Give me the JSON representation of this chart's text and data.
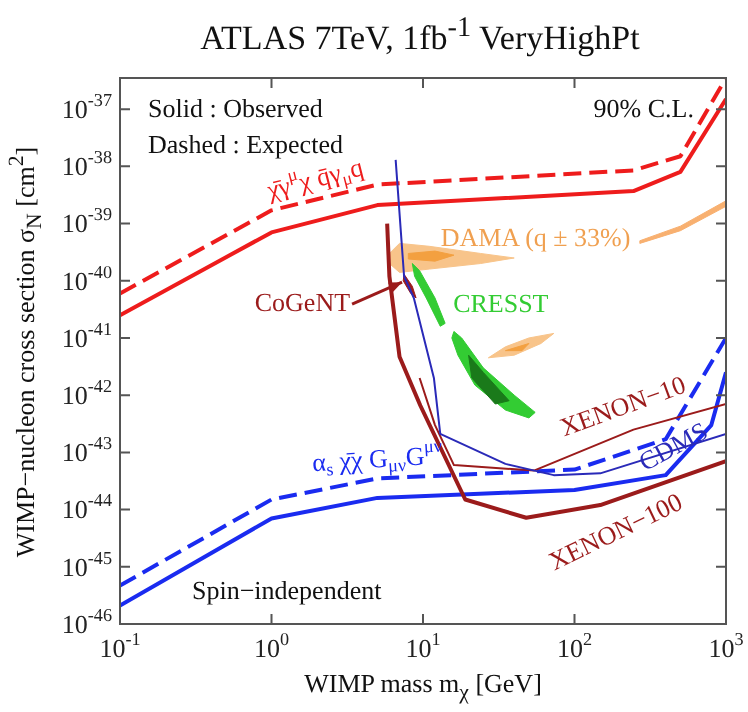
{
  "chart_data": {
    "type": "line",
    "title": "ATLAS 7TeV, 1fb$^{-1}$ VeryHighPt",
    "xlabel": "WIMP mass m$_{χ}$ [GeV]",
    "ylabel": "WIMP−nucleon cross section σ$_{N}$ [cm$^{2}$]",
    "log": "xy",
    "marker": "none",
    "xlim": [
      0.1,
      1000
    ],
    "ylim": [
      1e-46,
      3.5e-37
    ],
    "xticks": [
      {
        "value": 0.1,
        "label": "10$^{-1}$"
      },
      {
        "value": 1,
        "label": "10$^{0}$"
      },
      {
        "value": 10,
        "label": "10$^{1}$"
      },
      {
        "value": 100,
        "label": "10$^{2}$"
      },
      {
        "value": 1000,
        "label": "10$^{3}$"
      }
    ],
    "yticks": [
      {
        "value": 1e-46,
        "label": "10$^{-46}$"
      },
      {
        "value": 1e-45,
        "label": "10$^{-45}$"
      },
      {
        "value": 1e-44,
        "label": "10$^{-44}$"
      },
      {
        "value": 1e-43,
        "label": "10$^{-43}$"
      },
      {
        "value": 1e-42,
        "label": "10$^{-42}$"
      },
      {
        "value": 1e-41,
        "label": "10$^{-41}$"
      },
      {
        "value": 1e-40,
        "label": "10$^{-40}$"
      },
      {
        "value": 1e-39,
        "label": "10$^{-39}$"
      },
      {
        "value": 1e-38,
        "label": "10$^{-38}$"
      },
      {
        "value": 1e-37,
        "label": "10$^{-37}$"
      }
    ],
    "series": [
      {
        "color": "#ee1c1c",
        "line_style": "solid",
        "x": [
          0.1,
          1,
          5,
          245,
          500,
          1000
        ],
        "values": [
          2.5e-41,
          7e-40,
          2.1e-39,
          3.7e-39,
          8e-39,
          1.5e-37
        ]
      },
      {
        "name": "χ̄γ$^{μ}$χ q̄γ$_{μ}$q",
        "color": "#ee1c1c",
        "line_style": "dashed",
        "x": [
          0.1,
          1,
          5,
          245,
          500,
          1000
        ],
        "values": [
          6e-41,
          1.7e-39,
          4.8e-39,
          8.5e-39,
          1.5e-38,
          3.5e-37
        ]
      },
      {
        "color": "#1a2bf0",
        "line_style": "solid",
        "x": [
          0.1,
          1,
          5,
          100,
          400,
          800,
          1000
        ],
        "values": [
          2.1e-46,
          7e-45,
          1.6e-44,
          2.2e-44,
          4e-44,
          3e-43,
          2.5e-42
        ]
      },
      {
        "name": "α$_{s}$ χ̄χ G$_{μν}$G$^{μν}$",
        "color": "#1a2bf0",
        "line_style": "dashed",
        "x": [
          0.1,
          1,
          5,
          100,
          400,
          1000
        ],
        "values": [
          4.7e-46,
          1.5e-44,
          3.5e-44,
          5e-44,
          1.7e-43,
          1e-41
        ]
      },
      {
        "name": "XENON−100",
        "color": "#9b1b1b",
        "line_style": "solid",
        "x": [
          5.8,
          6,
          7,
          9.6,
          19,
          48,
          148,
          1000
        ],
        "values": [
          1e-39,
          1.2e-40,
          4.7e-42,
          6.6e-43,
          1.5e-44,
          7.2e-45,
          1.2e-44,
          7e-44
        ]
      },
      {
        "name": "XENON−10",
        "color": "#9b1b1b",
        "line_style": "solid",
        "x": [
          9.5,
          12,
          16,
          54,
          245,
          1000
        ],
        "values": [
          2e-42,
          3e-43,
          6e-44,
          4.8e-44,
          2.5e-43,
          7e-43
        ]
      },
      {
        "name": "CDMS",
        "color": "#2a2ab8",
        "line_style": "solid",
        "x": [
          6.6,
          7.5,
          8.7,
          11.8,
          13,
          35,
          73,
          148,
          1000
        ],
        "values": [
          1.3e-38,
          1.2e-40,
          5e-41,
          2e-42,
          2.1e-43,
          6.3e-44,
          4e-44,
          4.3e-44,
          2.1e-43
        ]
      },
      {
        "type": "area",
        "name": "CoGeNT",
        "color": "#9b1b1b",
        "x": [
          7.5,
          8.5,
          9,
          8.3,
          7.4,
          7.5
        ],
        "values": [
          1.3e-40,
          8e-41,
          5e-41,
          6e-41,
          1e-40,
          1.3e-40
        ]
      },
      {
        "type": "area",
        "color": "#f8c48a",
        "x": [
          6,
          7,
          11,
          24,
          40,
          24,
          11,
          7,
          6,
          6
        ],
        "values": [
          3e-40,
          4.5e-40,
          4e-40,
          3e-40,
          2.5e-40,
          2e-40,
          1.6e-40,
          1.4e-40,
          2e-40,
          3e-40
        ]
      },
      {
        "type": "area",
        "color": "#f3a040",
        "x": [
          8,
          12,
          16,
          12,
          8,
          8
        ],
        "values": [
          3e-40,
          3.3e-40,
          2.8e-40,
          2.2e-40,
          2.4e-40,
          3e-40
        ]
      },
      {
        "type": "area",
        "color": "#f8c48a",
        "x": [
          27,
          35,
          50,
          73,
          60,
          40,
          27
        ],
        "values": [
          4.5e-42,
          7e-42,
          1e-41,
          1.2e-41,
          8e-42,
          5e-42,
          4.5e-42
        ]
      },
      {
        "type": "area",
        "color": "#f3a040",
        "x": [
          35,
          50,
          45,
          35
        ],
        "values": [
          6e-42,
          8e-42,
          6e-42,
          6e-42
        ]
      },
      {
        "type": "area",
        "name": "DAMA (q ± 33%)",
        "color": "#f8b070",
        "x": [
          270,
          500,
          1000,
          1000,
          500,
          270,
          270
        ],
        "values": [
          5e-40,
          9e-40,
          2.5e-39,
          2e-39,
          7.5e-40,
          4.5e-40,
          5e-40
        ]
      },
      {
        "type": "area",
        "name": "CRESST",
        "color": "#33cc33",
        "x": [
          8.5,
          9.5,
          12,
          14,
          13,
          10.5,
          8.8,
          8.5
        ],
        "values": [
          2e-40,
          1.5e-40,
          5e-41,
          1.8e-41,
          1.6e-41,
          5e-41,
          1.2e-40,
          2e-40
        ]
      },
      {
        "type": "area",
        "color": "#33cc33",
        "x": [
          16,
          18,
          25,
          40,
          55,
          50,
          35,
          22,
          17,
          15.5,
          16
        ],
        "values": [
          1.3e-41,
          1e-41,
          3e-42,
          1e-42,
          5e-43,
          4e-43,
          5.5e-43,
          1.5e-42,
          5e-42,
          1e-41,
          1.3e-41
        ]
      },
      {
        "type": "area",
        "color": "#1a7a1a",
        "x": [
          20,
          25,
          37,
          30,
          21,
          20
        ],
        "values": [
          5e-42,
          2.5e-42,
          8e-43,
          7e-43,
          2e-42,
          5e-42
        ]
      }
    ],
    "annotations": [
      "Solid : Observed",
      "Dashed : Expected",
      "90% C.L.",
      "Spin−independent"
    ]
  }
}
